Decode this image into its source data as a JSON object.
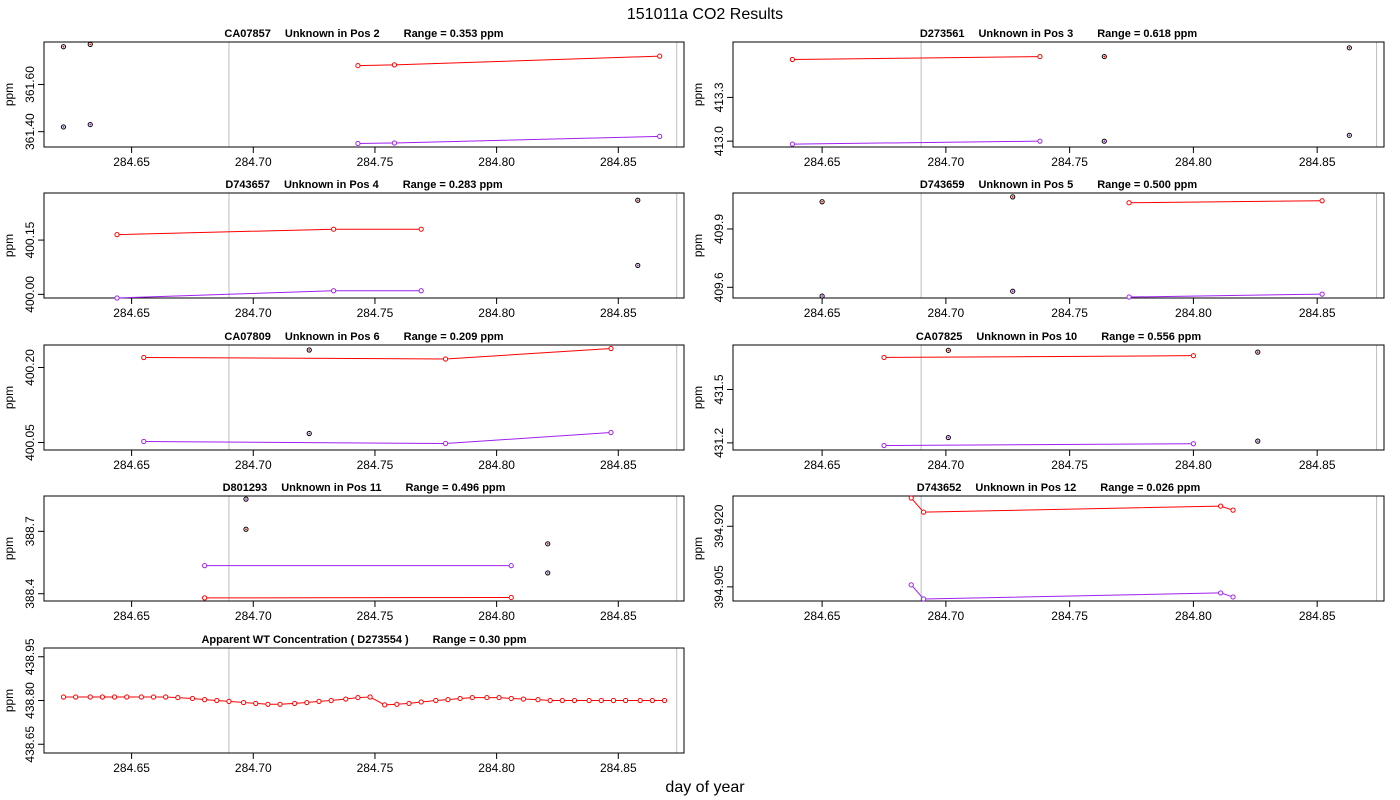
{
  "title": "151011a  CO2 Results",
  "x_axis_label": "day of year",
  "y_axis_label": "ppm",
  "colors": {
    "series_a": "#ff0000",
    "series_b": "#a020f0",
    "marker_outline": "#000000",
    "reference_line": "#bebebe"
  },
  "chart_data": [
    {
      "type": "line",
      "sample_id": "CA07857",
      "label": "Unknown in Pos 2",
      "range_text": "Range =  0.353 ppm",
      "xlim": [
        284.614,
        284.877
      ],
      "xticks": [
        284.65,
        284.7,
        284.75,
        284.8,
        284.85
      ],
      "ylim": [
        361.335,
        361.78
      ],
      "yticks": [
        361.4,
        361.6
      ],
      "ref_lines": [
        284.69,
        284.874
      ],
      "series": [
        {
          "name": "red",
          "color": "#ff0000",
          "x": [
            284.743,
            284.758,
            284.867
          ],
          "y": [
            361.68,
            361.683,
            361.72
          ]
        },
        {
          "name": "purple",
          "color": "#a020f0",
          "x": [
            284.743,
            284.758,
            284.867
          ],
          "y": [
            361.35,
            361.352,
            361.38
          ]
        }
      ],
      "markers": [
        {
          "x": 284.622,
          "y": 361.76,
          "color": "#ff0000"
        },
        {
          "x": 284.633,
          "y": 361.77,
          "color": "#ff0000"
        },
        {
          "x": 284.622,
          "y": 361.42,
          "color": "#a020f0"
        },
        {
          "x": 284.633,
          "y": 361.43,
          "color": "#a020f0"
        }
      ]
    },
    {
      "type": "line",
      "sample_id": "D273561",
      "label": "Unknown in Pos 3",
      "range_text": "Range =  0.618 ppm",
      "xlim": [
        284.614,
        284.877
      ],
      "xticks": [
        284.65,
        284.7,
        284.75,
        284.8,
        284.85
      ],
      "ylim": [
        412.96,
        413.68
      ],
      "yticks": [
        413.0,
        413.3
      ],
      "ref_lines": [
        284.69,
        284.874
      ],
      "series": [
        {
          "name": "red",
          "color": "#ff0000",
          "x": [
            284.638,
            284.738
          ],
          "y": [
            413.56,
            413.58
          ]
        },
        {
          "name": "purple",
          "color": "#a020f0",
          "x": [
            284.638,
            284.738
          ],
          "y": [
            412.98,
            413.0
          ]
        }
      ],
      "markers": [
        {
          "x": 284.764,
          "y": 413.58,
          "color": "#ff0000"
        },
        {
          "x": 284.863,
          "y": 413.64,
          "color": "#ff0000"
        },
        {
          "x": 284.764,
          "y": 413.0,
          "color": "#a020f0"
        },
        {
          "x": 284.863,
          "y": 413.04,
          "color": "#a020f0"
        }
      ]
    },
    {
      "type": "line",
      "sample_id": "D743657",
      "label": "Unknown in Pos 4",
      "range_text": "Range =  0.283 ppm",
      "xlim": [
        284.614,
        284.877
      ],
      "xticks": [
        284.65,
        284.7,
        284.75,
        284.8,
        284.85
      ],
      "ylim": [
        399.99,
        400.28
      ],
      "yticks": [
        400.0,
        400.15
      ],
      "ref_lines": [
        284.69,
        284.874
      ],
      "series": [
        {
          "name": "red",
          "color": "#ff0000",
          "x": [
            284.644,
            284.733,
            284.769
          ],
          "y": [
            400.165,
            400.18,
            400.18
          ]
        },
        {
          "name": "purple",
          "color": "#a020f0",
          "x": [
            284.644,
            284.733,
            284.769
          ],
          "y": [
            399.99,
            400.01,
            400.01
          ]
        }
      ],
      "markers": [
        {
          "x": 284.858,
          "y": 400.26,
          "color": "#ff0000"
        },
        {
          "x": 284.858,
          "y": 400.08,
          "color": "#a020f0"
        }
      ]
    },
    {
      "type": "line",
      "sample_id": "D743659",
      "label": "Unknown in Pos 5",
      "range_text": "Range =  0.500 ppm",
      "xlim": [
        284.614,
        284.877
      ],
      "xticks": [
        284.65,
        284.7,
        284.75,
        284.8,
        284.85
      ],
      "ylim": [
        409.545,
        410.085
      ],
      "yticks": [
        409.6,
        409.9
      ],
      "ref_lines": [
        284.69,
        284.874
      ],
      "series": [
        {
          "name": "red",
          "color": "#ff0000",
          "x": [
            284.774,
            284.852
          ],
          "y": [
            410.035,
            410.045
          ]
        },
        {
          "name": "purple",
          "color": "#a020f0",
          "x": [
            284.774,
            284.852
          ],
          "y": [
            409.55,
            409.565
          ]
        }
      ],
      "markers": [
        {
          "x": 284.65,
          "y": 410.04,
          "color": "#ff0000"
        },
        {
          "x": 284.727,
          "y": 410.065,
          "color": "#ff0000"
        },
        {
          "x": 284.65,
          "y": 409.555,
          "color": "#a020f0"
        },
        {
          "x": 284.727,
          "y": 409.58,
          "color": "#a020f0"
        }
      ]
    },
    {
      "type": "line",
      "sample_id": "CA07809",
      "label": "Unknown in Pos 6",
      "range_text": "Range =  0.209 ppm",
      "xlim": [
        284.614,
        284.877
      ],
      "xticks": [
        284.65,
        284.7,
        284.75,
        284.8,
        284.85
      ],
      "ylim": [
        400.035,
        400.245
      ],
      "yticks": [
        400.05,
        400.2
      ],
      "ref_lines": [
        284.69,
        284.874
      ],
      "series": [
        {
          "name": "red",
          "color": "#ff0000",
          "x": [
            284.655,
            284.779,
            284.847
          ],
          "y": [
            400.22,
            400.217,
            400.238
          ]
        },
        {
          "name": "purple",
          "color": "#a020f0",
          "x": [
            284.655,
            284.779,
            284.847
          ],
          "y": [
            400.052,
            400.048,
            400.07
          ]
        }
      ],
      "markers": [
        {
          "x": 284.723,
          "y": 400.235,
          "color": "#ff0000"
        },
        {
          "x": 284.723,
          "y": 400.068,
          "color": "#a020f0"
        }
      ]
    },
    {
      "type": "line",
      "sample_id": "CA07825",
      "label": "Unknown in Pos 10",
      "range_text": "Range =  0.556 ppm",
      "xlim": [
        284.614,
        284.877
      ],
      "xticks": [
        284.65,
        284.7,
        284.75,
        284.8,
        284.85
      ],
      "ylim": [
        431.16,
        431.75
      ],
      "yticks": [
        431.2,
        431.5
      ],
      "ref_lines": [
        284.69,
        284.874
      ],
      "series": [
        {
          "name": "red",
          "color": "#ff0000",
          "x": [
            284.675,
            284.8
          ],
          "y": [
            431.68,
            431.69
          ]
        },
        {
          "name": "purple",
          "color": "#a020f0",
          "x": [
            284.675,
            284.8
          ],
          "y": [
            431.185,
            431.195
          ]
        }
      ],
      "markers": [
        {
          "x": 284.701,
          "y": 431.72,
          "color": "#ff0000"
        },
        {
          "x": 284.826,
          "y": 431.71,
          "color": "#ff0000"
        },
        {
          "x": 284.701,
          "y": 431.23,
          "color": "#a020f0"
        },
        {
          "x": 284.826,
          "y": 431.21,
          "color": "#a020f0"
        }
      ]
    },
    {
      "type": "line",
      "sample_id": "D801293",
      "label": "Unknown in Pos 11",
      "range_text": "Range =  0.496 ppm",
      "xlim": [
        284.614,
        284.877
      ],
      "xticks": [
        284.65,
        284.7,
        284.75,
        284.8,
        284.85
      ],
      "ylim": [
        388.365,
        388.87
      ],
      "yticks": [
        388.4,
        388.7
      ],
      "ref_lines": [
        284.69,
        284.874
      ],
      "series": [
        {
          "name": "red",
          "color": "#ff0000",
          "x": [
            284.68,
            284.806
          ],
          "y": [
            388.38,
            388.382
          ]
        },
        {
          "name": "purple",
          "color": "#a020f0",
          "x": [
            284.68,
            284.806
          ],
          "y": [
            388.535,
            388.535
          ]
        }
      ],
      "markers": [
        {
          "x": 284.697,
          "y": 388.855,
          "color": "#a020f0"
        },
        {
          "x": 284.697,
          "y": 388.71,
          "color": "#ff0000"
        },
        {
          "x": 284.821,
          "y": 388.64,
          "color": "#ff0000"
        },
        {
          "x": 284.821,
          "y": 388.5,
          "color": "#a020f0"
        }
      ]
    },
    {
      "type": "line",
      "sample_id": "D743652",
      "label": "Unknown in Pos 12",
      "range_text": "Range =  0.026 ppm",
      "xlim": [
        284.614,
        284.877
      ],
      "xticks": [
        284.65,
        284.7,
        284.75,
        284.8,
        284.85
      ],
      "ylim": [
        394.9015,
        394.9275
      ],
      "yticks": [
        394.905,
        394.92
      ],
      "ref_lines": [
        284.69,
        284.874
      ],
      "series": [
        {
          "name": "red",
          "color": "#ff0000",
          "x": [
            284.686,
            284.691,
            284.811,
            284.816
          ],
          "y": [
            394.927,
            394.9235,
            394.925,
            394.924
          ]
        },
        {
          "name": "purple",
          "color": "#a020f0",
          "x": [
            284.686,
            284.691,
            284.811,
            284.816
          ],
          "y": [
            394.9055,
            394.902,
            394.9035,
            394.9025
          ]
        }
      ]
    },
    {
      "type": "line",
      "sample_id": "",
      "label": "Apparent WT Concentration ( D273554 )",
      "range_text": "Range = 0.30 ppm",
      "xlim": [
        284.614,
        284.877
      ],
      "xticks": [
        284.65,
        284.7,
        284.75,
        284.8,
        284.85
      ],
      "ylim": [
        438.62,
        438.98
      ],
      "yticks": [
        438.65,
        438.8,
        438.95
      ],
      "ref_lines": [
        284.69,
        284.874
      ],
      "series": [
        {
          "name": "red",
          "color": "#ff0000",
          "x": [
            284.622,
            284.627,
            284.633,
            284.638,
            284.643,
            284.648,
            284.654,
            284.659,
            284.664,
            284.669,
            284.675,
            284.68,
            284.685,
            284.69,
            284.696,
            284.701,
            284.706,
            284.711,
            284.717,
            284.722,
            284.727,
            284.732,
            284.738,
            284.743,
            284.748,
            284.754,
            284.759,
            284.764,
            284.769,
            284.775,
            284.78,
            284.785,
            284.79,
            284.796,
            284.801,
            284.806,
            284.811,
            284.817,
            284.822,
            284.827,
            284.832,
            284.838,
            284.843,
            284.848,
            284.853,
            284.859,
            284.864,
            284.869
          ],
          "y": [
            438.812,
            438.812,
            438.812,
            438.812,
            438.812,
            438.812,
            438.812,
            438.812,
            438.812,
            438.81,
            438.807,
            438.803,
            438.8,
            438.797,
            438.793,
            438.79,
            438.787,
            438.787,
            438.79,
            438.793,
            438.797,
            438.8,
            438.805,
            438.81,
            438.812,
            438.785,
            438.787,
            438.79,
            438.795,
            438.8,
            438.803,
            438.807,
            438.81,
            438.81,
            438.81,
            438.807,
            438.805,
            438.803,
            438.8,
            438.8,
            438.8,
            438.8,
            438.8,
            438.8,
            438.8,
            438.8,
            438.8,
            438.8
          ]
        }
      ]
    }
  ]
}
